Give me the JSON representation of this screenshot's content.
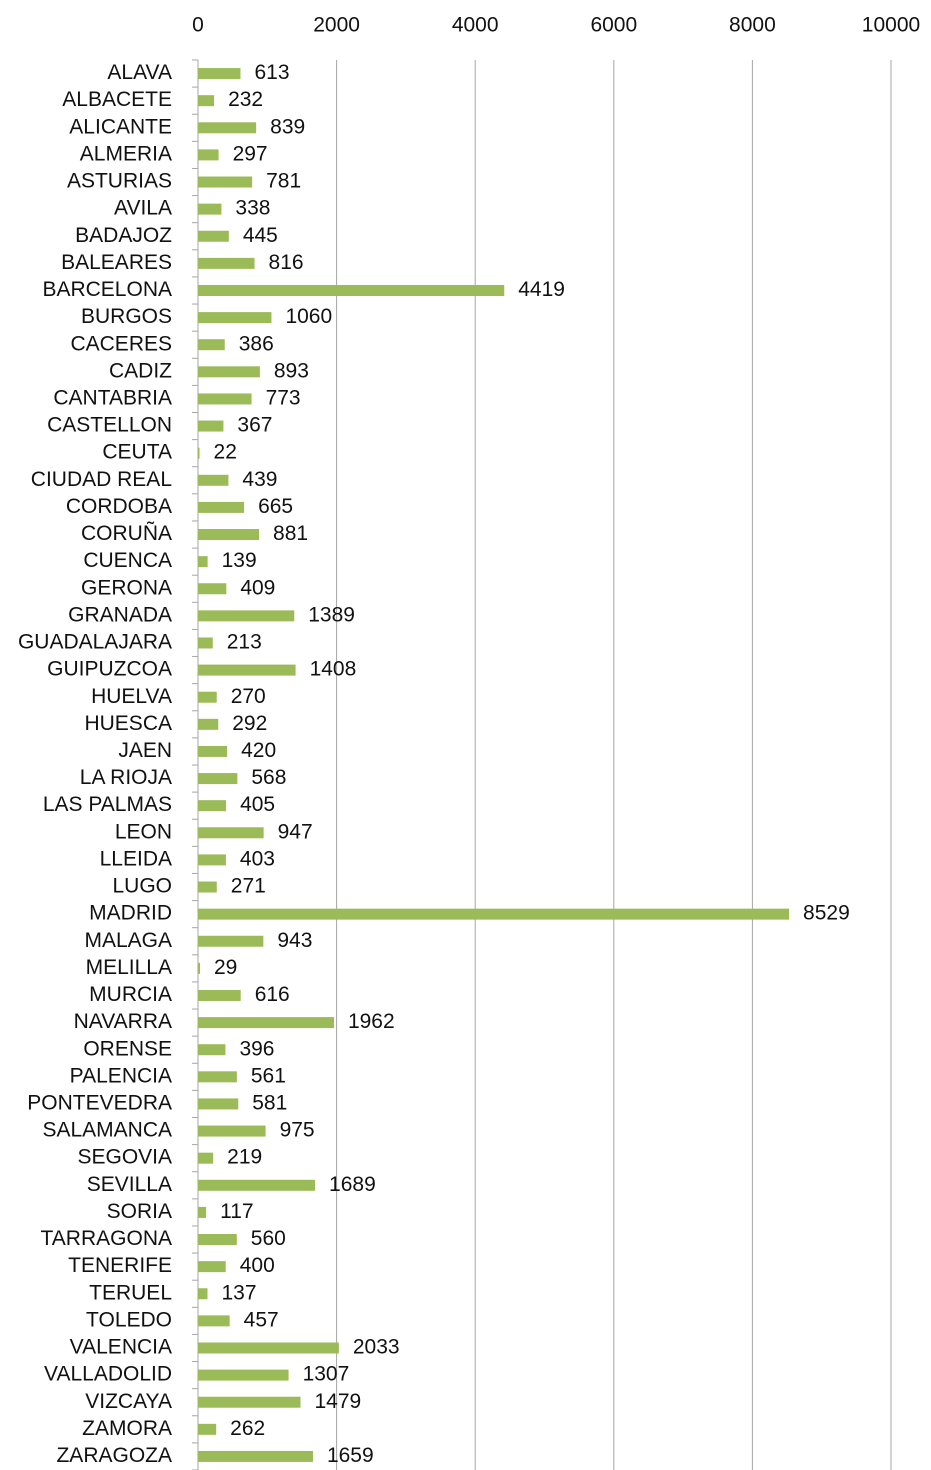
{
  "chart_data": {
    "type": "barh",
    "categories": [
      "ALAVA",
      "ALBACETE",
      "ALICANTE",
      "ALMERIA",
      "ASTURIAS",
      "AVILA",
      "BADAJOZ",
      "BALEARES",
      "BARCELONA",
      "BURGOS",
      "CACERES",
      "CADIZ",
      "CANTABRIA",
      "CASTELLON",
      "CEUTA",
      "CIUDAD REAL",
      "CORDOBA",
      "CORUÑA",
      "CUENCA",
      "GERONA",
      "GRANADA",
      "GUADALAJARA",
      "GUIPUZCOA",
      "HUELVA",
      "HUESCA",
      "JAEN",
      "LA RIOJA",
      "LAS PALMAS",
      "LEON",
      "LLEIDA",
      "LUGO",
      "MADRID",
      "MALAGA",
      "MELILLA",
      "MURCIA",
      "NAVARRA",
      "ORENSE",
      "PALENCIA",
      "PONTEVEDRA",
      "SALAMANCA",
      "SEGOVIA",
      "SEVILLA",
      "SORIA",
      "TARRAGONA",
      "TENERIFE",
      "TERUEL",
      "TOLEDO",
      "VALENCIA",
      "VALLADOLID",
      "VIZCAYA",
      "ZAMORA",
      "ZARAGOZA"
    ],
    "values": [
      613,
      232,
      839,
      297,
      781,
      338,
      445,
      816,
      4419,
      1060,
      386,
      893,
      773,
      367,
      22,
      439,
      665,
      881,
      139,
      409,
      1389,
      213,
      1408,
      270,
      292,
      420,
      568,
      405,
      947,
      403,
      271,
      8529,
      943,
      29,
      616,
      1962,
      396,
      561,
      581,
      975,
      219,
      1689,
      117,
      560,
      400,
      137,
      457,
      2033,
      1307,
      1479,
      262,
      1659
    ],
    "color": "#9bbb59",
    "xlim": [
      0,
      10000
    ],
    "xticks": [
      0,
      2000,
      4000,
      6000,
      8000,
      10000
    ],
    "grid": true
  }
}
